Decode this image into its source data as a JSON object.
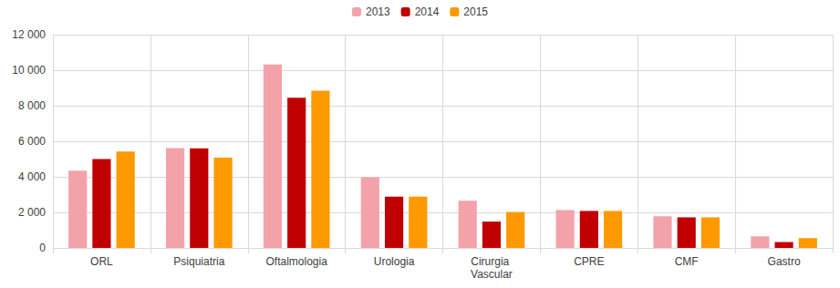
{
  "chart_data": {
    "type": "bar",
    "categories": [
      "ORL",
      "Psiquiatria",
      "Oftalmologia",
      "Urologia",
      "Cirurgia Vascular",
      "CPRE",
      "CMF",
      "Gastro"
    ],
    "series": [
      {
        "name": "2013",
        "color": "#f4a2a9",
        "values": [
          4350,
          5620,
          10320,
          3970,
          2650,
          2130,
          1780,
          650
        ]
      },
      {
        "name": "2014",
        "color": "#c00000",
        "values": [
          5000,
          5600,
          8450,
          2880,
          1480,
          2080,
          1720,
          330
        ]
      },
      {
        "name": "2015",
        "color": "#ff9900",
        "values": [
          5420,
          5080,
          8850,
          2880,
          2020,
          2080,
          1720,
          550
        ]
      }
    ],
    "ylim": [
      0,
      12000
    ],
    "yticks": [
      0,
      {
        "value": 2000,
        "label": "2 000"
      },
      {
        "value": 4000,
        "label": "4 000"
      },
      {
        "value": 6000,
        "label": "6 000"
      },
      {
        "value": 8000,
        "label": "8 000"
      },
      {
        "value": 10000,
        "label": "10 000"
      },
      {
        "value": 12000,
        "label": "12 000"
      }
    ],
    "grid": true,
    "legend": "top"
  }
}
